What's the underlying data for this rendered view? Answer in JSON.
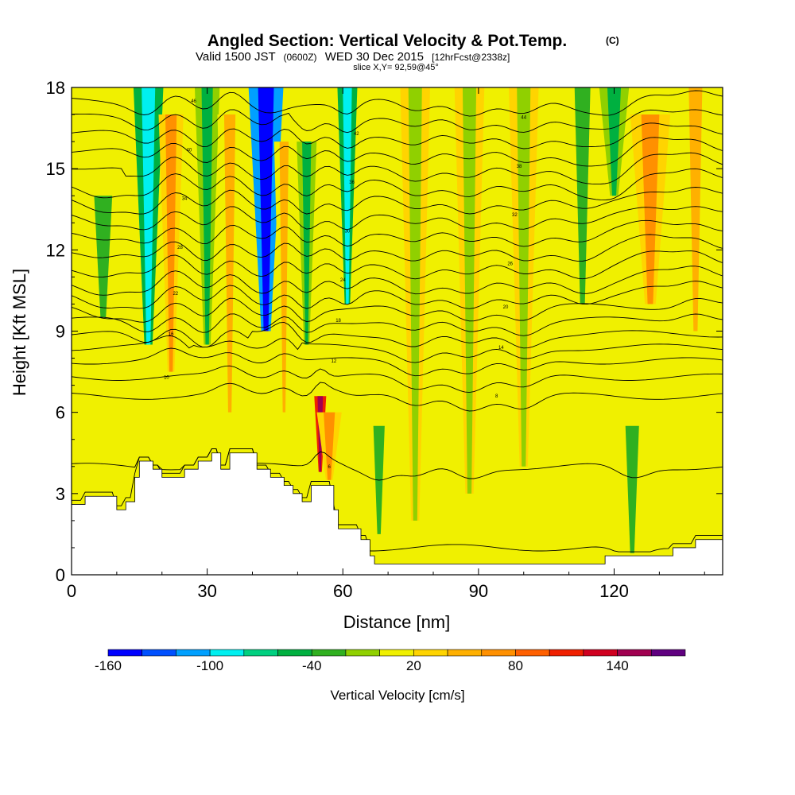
{
  "title": {
    "main": "Angled Section: Vertical Velocity & Pot.Temp.",
    "main_suffix": "(C)",
    "valid_prefix": "Valid 1500 JST",
    "valid_utc": "(0600Z)",
    "valid_date": "WED 30 Dec 2015",
    "forecast": "[12hrFcst@2338z]",
    "slice": "slice X,Y= 92,59@45°"
  },
  "colorbar": {
    "label": "Vertical Velocity [cm/s]",
    "tick_labels": [
      "-160",
      "-100",
      "-40",
      "20",
      "80",
      "140"
    ],
    "tick_values": [
      -160,
      -100,
      -40,
      20,
      80,
      140
    ],
    "levels": [
      -160,
      -140,
      -120,
      -100,
      -80,
      -60,
      -40,
      -20,
      0,
      20,
      40,
      60,
      80,
      100,
      120,
      140,
      160,
      180
    ],
    "colors": [
      "#0000ff",
      "#0050ff",
      "#00a0ff",
      "#00f0f0",
      "#00d080",
      "#00b040",
      "#30b020",
      "#90d000",
      "#f0f000",
      "#ffd400",
      "#ffb000",
      "#ff9000",
      "#ff6000",
      "#f02000",
      "#d00020",
      "#a00050",
      "#600080"
    ]
  },
  "chart_data": {
    "type": "heatmap",
    "title": "Angled Section: Vertical Velocity & Pot.Temp. (C)",
    "xlabel": "Distance [nm]",
    "ylabel": "Height [Kft MSL]",
    "xlim": [
      0,
      144
    ],
    "ylim": [
      0,
      18
    ],
    "x_ticks": [
      0,
      30,
      60,
      90,
      120
    ],
    "y_ticks": [
      0,
      3,
      6,
      9,
      12,
      15,
      18
    ],
    "x_tick_labels": [
      "0",
      "30",
      "60",
      "90",
      "120"
    ],
    "y_tick_labels": [
      "0",
      "3",
      "6",
      "9",
      "12",
      "15",
      "18"
    ],
    "terrain": [
      [
        0,
        2.6
      ],
      [
        3,
        2.9
      ],
      [
        8,
        2.9
      ],
      [
        10,
        2.4
      ],
      [
        12,
        2.7
      ],
      [
        14,
        3.6
      ],
      [
        15,
        4.2
      ],
      [
        17,
        4.2
      ],
      [
        18,
        3.9
      ],
      [
        20,
        3.6
      ],
      [
        23,
        3.6
      ],
      [
        25,
        3.9
      ],
      [
        28,
        4.2
      ],
      [
        31,
        4.5
      ],
      [
        33,
        3.9
      ],
      [
        35,
        4.5
      ],
      [
        38,
        4.5
      ],
      [
        41,
        3.9
      ],
      [
        44,
        3.6
      ],
      [
        47,
        3.3
      ],
      [
        49,
        3.0
      ],
      [
        51,
        2.7
      ],
      [
        53,
        3.3
      ],
      [
        56,
        3.3
      ],
      [
        58,
        2.4
      ],
      [
        59,
        1.7
      ],
      [
        62,
        1.7
      ],
      [
        64,
        1.3
      ],
      [
        66,
        0.7
      ],
      [
        67,
        0.4
      ],
      [
        102,
        0.4
      ],
      [
        115,
        0.4
      ],
      [
        118,
        0.7
      ],
      [
        128,
        0.7
      ],
      [
        133,
        1.0
      ],
      [
        138,
        1.3
      ],
      [
        144,
        1.3
      ]
    ],
    "vertical_velocity_features": [
      {
        "x": 17,
        "ytop": 18,
        "ybot": 8.5,
        "width": 3,
        "value": -100
      },
      {
        "x": 22,
        "ytop": 17,
        "ybot": 7.5,
        "width": 2.5,
        "value": 60
      },
      {
        "x": 30,
        "ytop": 18,
        "ybot": 8.5,
        "width": 2.5,
        "value": -60
      },
      {
        "x": 35,
        "ytop": 17,
        "ybot": 6,
        "width": 2.5,
        "value": 40
      },
      {
        "x": 43,
        "ytop": 18,
        "ybot": 9,
        "width": 3.5,
        "value": -160
      },
      {
        "x": 47,
        "ytop": 16,
        "ybot": 6,
        "width": 2,
        "value": 40
      },
      {
        "x": 52,
        "ytop": 16,
        "ybot": 8.5,
        "width": 2,
        "value": -60
      },
      {
        "x": 55,
        "ytop": 6.6,
        "ybot": 3.8,
        "width": 1.2,
        "value": 140
      },
      {
        "x": 57,
        "ytop": 6,
        "ybot": 3.5,
        "width": 2.5,
        "value": 60
      },
      {
        "x": 61,
        "ytop": 18,
        "ybot": 10,
        "width": 2,
        "value": -100
      },
      {
        "x": 68,
        "ytop": 5.5,
        "ybot": 1.5,
        "width": 2.5,
        "value": -40
      },
      {
        "x": 76,
        "ytop": 18,
        "ybot": 2,
        "width": 3,
        "value": -20
      },
      {
        "x": 88,
        "ytop": 18,
        "ybot": 3,
        "width": 3,
        "value": -20
      },
      {
        "x": 100,
        "ytop": 18,
        "ybot": 4,
        "width": 3,
        "value": -20
      },
      {
        "x": 113,
        "ytop": 18,
        "ybot": 10,
        "width": 3.5,
        "value": -40
      },
      {
        "x": 120,
        "ytop": 18,
        "ybot": 14,
        "width": 3,
        "value": -60
      },
      {
        "x": 128,
        "ytop": 17,
        "ybot": 10,
        "width": 4,
        "value": 60
      },
      {
        "x": 138,
        "ytop": 18,
        "ybot": 9,
        "width": 3,
        "value": 40
      },
      {
        "x": 124,
        "ytop": 5.5,
        "ybot": 0.8,
        "width": 3,
        "value": -40
      },
      {
        "x": 7,
        "ytop": 14,
        "ybot": 9.5,
        "width": 4,
        "value": -40
      }
    ],
    "potential_temperature_contours": [
      {
        "base": 1.0,
        "label": "4"
      },
      {
        "base": 4.0,
        "label": "6"
      },
      {
        "base": 6.6,
        "label": "8"
      },
      {
        "base": 7.3,
        "label": "10"
      },
      {
        "base": 7.9,
        "label": "12"
      },
      {
        "base": 8.4,
        "label": "14"
      },
      {
        "base": 8.9,
        "label": "16"
      },
      {
        "base": 9.4,
        "label": "18"
      },
      {
        "base": 9.9,
        "label": "20"
      },
      {
        "base": 10.4,
        "label": "22"
      },
      {
        "base": 10.9,
        "label": "24"
      },
      {
        "base": 11.5,
        "label": "26"
      },
      {
        "base": 12.1,
        "label": "28"
      },
      {
        "base": 12.7,
        "label": "30"
      },
      {
        "base": 13.3,
        "label": "32"
      },
      {
        "base": 13.9,
        "label": "34"
      },
      {
        "base": 14.5,
        "label": "36"
      },
      {
        "base": 15.1,
        "label": "38"
      },
      {
        "base": 15.7,
        "label": "40"
      },
      {
        "base": 16.3,
        "label": "42"
      },
      {
        "base": 16.9,
        "label": "44"
      },
      {
        "base": 17.5,
        "label": "46"
      }
    ]
  }
}
